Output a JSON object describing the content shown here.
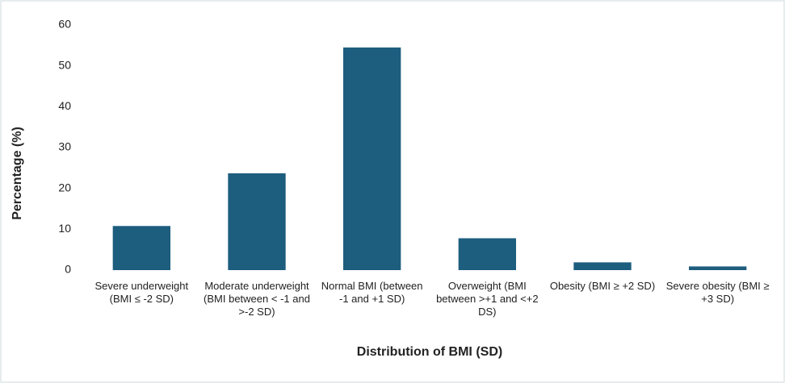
{
  "chart_data": {
    "type": "bar",
    "x_label": "Distribution of BMI (SD)",
    "y_label": "Percentage (%)",
    "categories": [
      "Severe underweight (BMI ≤ -2 SD)",
      "Moderate underweight (BMI between < -1 and >-2 SD)",
      "Normal BMI (between -1 and +1 SD)",
      "Overweight (BMI between >+1 and <+2 DS)",
      "Obesity (BMI ≥ +2 SD)",
      "Severe obesity (BMI ≥ +3 SD)"
    ],
    "values": [
      10.8,
      23.7,
      54.5,
      7.8,
      1.9,
      0.9
    ],
    "color": "#1d5d7e",
    "ylim": [
      0,
      60
    ],
    "yticks": [
      0,
      10,
      20,
      30,
      40,
      50,
      60
    ],
    "grid": false
  }
}
